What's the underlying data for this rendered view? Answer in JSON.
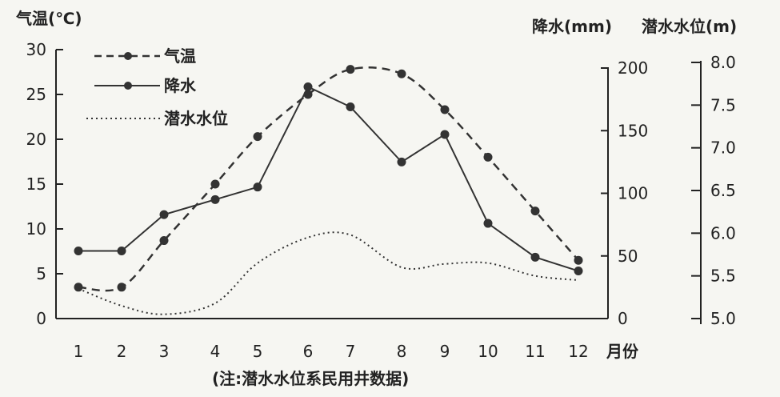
{
  "chart_data": {
    "type": "line",
    "x_label": "月份",
    "x": [
      1,
      2,
      3,
      4,
      5,
      6,
      7,
      8,
      9,
      10,
      11,
      12
    ],
    "axes": {
      "left": {
        "label": "气温(℃)",
        "ticks": [
          0,
          5,
          10,
          15,
          20,
          25,
          30
        ],
        "range": [
          0,
          30
        ]
      },
      "right_1": {
        "label": "降水(mm)",
        "ticks": [
          0,
          50,
          100,
          150,
          200
        ],
        "range": [
          0,
          210
        ]
      },
      "right_2": {
        "label": "潜水水位(m)",
        "ticks": [
          5.0,
          5.5,
          6.0,
          6.5,
          7.0,
          7.5,
          8.0
        ],
        "range": [
          5.0,
          8.0
        ]
      }
    },
    "series": [
      {
        "name": "气温",
        "axis": "left",
        "style": "dashed-markers",
        "values": [
          3.5,
          3.5,
          8.7,
          15,
          20.3,
          25,
          27.8,
          27.3,
          23.3,
          18,
          12,
          6.5
        ]
      },
      {
        "name": "降水",
        "axis": "right_1",
        "style": "solid-markers",
        "values": [
          54,
          54,
          83,
          95,
          105,
          185,
          169,
          125,
          147,
          76,
          49,
          38
        ]
      },
      {
        "name": "潜水水位",
        "axis": "right_2",
        "style": "dotted",
        "values": [
          5.35,
          5.15,
          5.05,
          5.18,
          5.65,
          5.95,
          5.98,
          5.6,
          5.64,
          5.65,
          5.5,
          5.45
        ]
      }
    ],
    "legend": [
      "气温",
      "降水",
      "潜水水位"
    ],
    "legend_position": "top-left",
    "note": "(注:潜水水位系民用井数据)",
    "colors": {
      "line": "#222222",
      "background": "#f6f6f2"
    }
  }
}
